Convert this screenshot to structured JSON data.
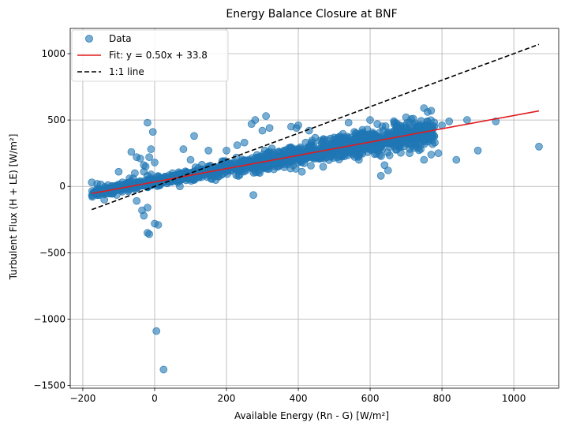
{
  "chart_data": {
    "type": "scatter",
    "title": "Energy Balance Closure at BNF",
    "xlabel": "Available Energy (Rn - G) [W/m²]",
    "ylabel": "Turbulent Flux (H + LE) [W/m²]",
    "xlim": [
      -235,
      1125
    ],
    "ylim": [
      -1520,
      1190
    ],
    "xticks": [
      -200,
      0,
      200,
      400,
      600,
      800,
      1000
    ],
    "yticks": [
      -1500,
      -1000,
      -500,
      0,
      500,
      1000
    ],
    "xtick_labels": [
      "−200",
      "0",
      "200",
      "400",
      "600",
      "800",
      "1000"
    ],
    "ytick_labels": [
      "−1500",
      "−1000",
      "−500",
      "0",
      "500",
      "1000"
    ],
    "grid": true,
    "legend_position": "top-left",
    "series": [
      {
        "name": "Data",
        "kind": "scatter",
        "color": "#1f77b4",
        "generated_cloud": {
          "x_min": -175,
          "x_max": 780,
          "n": 1500,
          "slope": 0.5,
          "intercept": 33.8
        },
        "points": [
          [
            -175,
            30
          ],
          [
            -160,
            20
          ],
          [
            -150,
            15
          ],
          [
            -130,
            10
          ],
          [
            -110,
            5
          ],
          [
            -100,
            15
          ],
          [
            -90,
            30
          ],
          [
            -80,
            20
          ],
          [
            -70,
            60
          ],
          [
            -60,
            60
          ],
          [
            -55,
            100
          ],
          [
            -40,
            40
          ],
          [
            -30,
            110
          ],
          [
            -20,
            80
          ],
          [
            -10,
            90
          ],
          [
            0,
            50
          ],
          [
            -65,
            260
          ],
          [
            -50,
            220
          ],
          [
            -40,
            210
          ],
          [
            -30,
            160
          ],
          [
            -25,
            150
          ],
          [
            -15,
            220
          ],
          [
            -10,
            280
          ],
          [
            0,
            180
          ],
          [
            -20,
            480
          ],
          [
            -5,
            410
          ],
          [
            -100,
            110
          ],
          [
            -120,
            -50
          ],
          [
            -140,
            -100
          ],
          [
            -50,
            -110
          ],
          [
            -35,
            -180
          ],
          [
            -20,
            -160
          ],
          [
            -30,
            -220
          ],
          [
            -20,
            -350
          ],
          [
            -15,
            -360
          ],
          [
            0,
            -280
          ],
          [
            10,
            -290
          ],
          [
            5,
            -1090
          ],
          [
            25,
            -1380
          ],
          [
            50,
            100
          ],
          [
            80,
            280
          ],
          [
            100,
            200
          ],
          [
            110,
            380
          ],
          [
            150,
            270
          ],
          [
            200,
            270
          ],
          [
            210,
            160
          ],
          [
            230,
            310
          ],
          [
            250,
            330
          ],
          [
            270,
            470
          ],
          [
            280,
            500
          ],
          [
            275,
            -65
          ],
          [
            300,
            420
          ],
          [
            310,
            530
          ],
          [
            320,
            440
          ],
          [
            380,
            450
          ],
          [
            395,
            440
          ],
          [
            400,
            460
          ],
          [
            430,
            420
          ],
          [
            410,
            110
          ],
          [
            450,
            220
          ],
          [
            480,
            350
          ],
          [
            520,
            330
          ],
          [
            540,
            480
          ],
          [
            560,
            400
          ],
          [
            580,
            400
          ],
          [
            600,
            500
          ],
          [
            620,
            470
          ],
          [
            630,
            80
          ],
          [
            640,
            160
          ],
          [
            650,
            120
          ],
          [
            680,
            300
          ],
          [
            700,
            520
          ],
          [
            710,
            250
          ],
          [
            720,
            510
          ],
          [
            730,
            410
          ],
          [
            740,
            310
          ],
          [
            750,
            590
          ],
          [
            760,
            560
          ],
          [
            770,
            570
          ],
          [
            780,
            330
          ],
          [
            790,
            250
          ],
          [
            800,
            460
          ],
          [
            750,
            200
          ],
          [
            770,
            240
          ],
          [
            820,
            490
          ],
          [
            840,
            200
          ],
          [
            870,
            500
          ],
          [
            900,
            270
          ],
          [
            950,
            490
          ],
          [
            1070,
            300
          ]
        ]
      },
      {
        "name": "Fit: y = 0.50x + 33.8",
        "kind": "line",
        "color": "#e31a1c",
        "dash": "solid",
        "slope": 0.5,
        "intercept": 33.8,
        "x_range": [
          -175,
          1070
        ]
      },
      {
        "name": "1:1 line",
        "kind": "line",
        "color": "#000000",
        "dash": "dashed",
        "slope": 1,
        "intercept": 0,
        "x_range": [
          -175,
          1070
        ]
      }
    ]
  }
}
